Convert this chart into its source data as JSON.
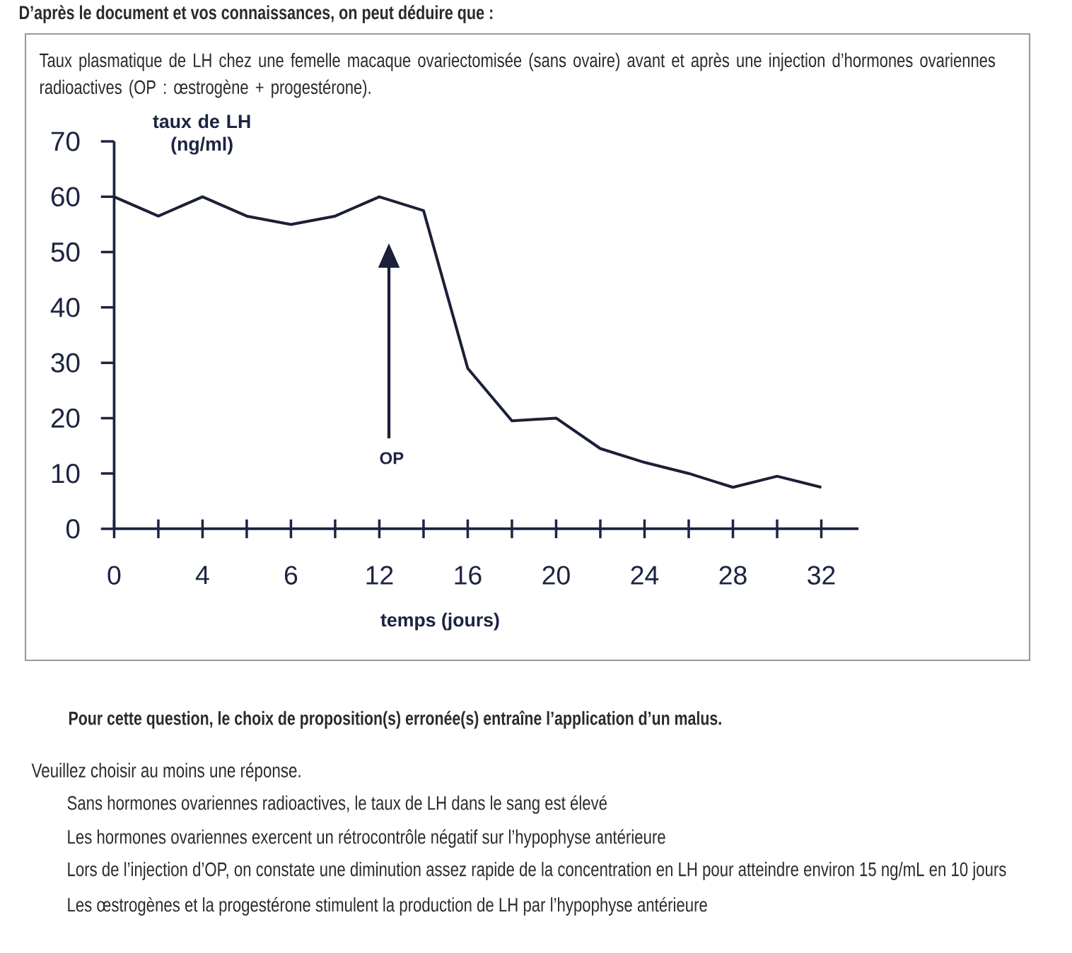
{
  "chart_data": {
    "type": "line",
    "title": "Taux plasmatique de LH chez une femelle macaque ovariectomisée (sans ovaire) avant et après une injection d’hormones ovariennes radioactives (OP : œstrogène + progestérone).",
    "xlabel": "temps (jours)",
    "ylabel": "taux de LH (ng/ml)",
    "categories": [
      "0",
      null,
      "4",
      null,
      "6",
      null,
      "12",
      null,
      "16",
      null,
      "20",
      null,
      "24",
      null,
      "28",
      null,
      "32"
    ],
    "values": [
      60,
      56.5,
      60,
      56.5,
      55,
      56.5,
      60,
      57.5,
      29,
      19.5,
      20,
      14.5,
      12,
      10,
      7.5,
      9.5,
      7.5
    ],
    "color": "#1b2038",
    "ylim": [
      0,
      70
    ],
    "yticks": [
      0,
      10,
      20,
      30,
      40,
      50,
      60,
      70
    ],
    "annotations": [
      "D’après le document et vos connaissances, on peut déduire que :",
      "OP",
      "Pour cette question, le choix de proposition(s) erronée(s) entraîne l’application d’un malus.",
      "Veuillez choisir au moins une réponse.",
      "Sans hormones ovariennes radioactives, le taux de LH dans le sang est élevé",
      "Les hormones ovariennes exercent un rétrocontrôle négatif sur l’hypophyse antérieure",
      "Lors de l’injection d’OP, on constate une diminution assez rapide de la concentration en LH pour atteindre environ 15 ng/mL en 10 jours",
      "Les œstrogènes et la progestérone stimulent la production de LH par l’hypophyse antérieure"
    ]
  }
}
